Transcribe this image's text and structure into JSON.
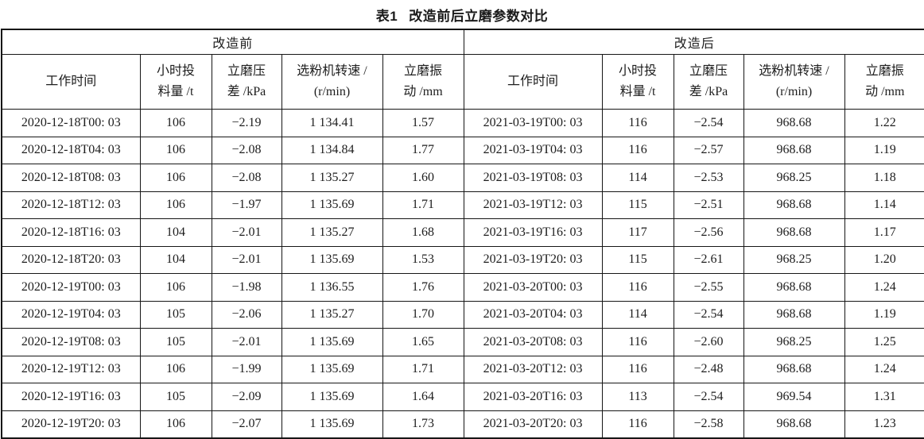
{
  "page": {
    "title_label": "表1",
    "title_text": "改造前后立磨参数对比"
  },
  "colors": {
    "background": "#ffffff",
    "border": "#161616",
    "text": "#1d1d1d"
  },
  "table": {
    "group_headers": [
      "改造前",
      "改造后"
    ],
    "column_headers": [
      {
        "lines": [
          "工作时间"
        ]
      },
      {
        "lines": [
          "小时投",
          "料量 /t"
        ]
      },
      {
        "lines": [
          "立磨压",
          "差 /kPa"
        ]
      },
      {
        "lines": [
          "选粉机转速 /",
          "(r/min)"
        ]
      },
      {
        "lines": [
          "立磨振",
          "动 /mm"
        ]
      }
    ],
    "before_rows": [
      [
        "2020-12-18T00: 03",
        "106",
        "−2.19",
        "1 134.41",
        "1.57"
      ],
      [
        "2020-12-18T04: 03",
        "106",
        "−2.08",
        "1 134.84",
        "1.77"
      ],
      [
        "2020-12-18T08: 03",
        "106",
        "−2.08",
        "1 135.27",
        "1.60"
      ],
      [
        "2020-12-18T12: 03",
        "106",
        "−1.97",
        "1 135.69",
        "1.71"
      ],
      [
        "2020-12-18T16: 03",
        "104",
        "−2.01",
        "1 135.27",
        "1.68"
      ],
      [
        "2020-12-18T20: 03",
        "104",
        "−2.01",
        "1 135.69",
        "1.53"
      ],
      [
        "2020-12-19T00: 03",
        "106",
        "−1.98",
        "1 136.55",
        "1.76"
      ],
      [
        "2020-12-19T04: 03",
        "105",
        "−2.06",
        "1 135.27",
        "1.70"
      ],
      [
        "2020-12-19T08: 03",
        "105",
        "−2.01",
        "1 135.69",
        "1.65"
      ],
      [
        "2020-12-19T12: 03",
        "106",
        "−1.99",
        "1 135.69",
        "1.71"
      ],
      [
        "2020-12-19T16: 03",
        "105",
        "−2.09",
        "1 135.69",
        "1.64"
      ],
      [
        "2020-12-19T20: 03",
        "106",
        "−2.07",
        "1 135.69",
        "1.73"
      ]
    ],
    "after_rows": [
      [
        "2021-03-19T00: 03",
        "116",
        "−2.54",
        "968.68",
        "1.22"
      ],
      [
        "2021-03-19T04: 03",
        "116",
        "−2.57",
        "968.68",
        "1.19"
      ],
      [
        "2021-03-19T08: 03",
        "114",
        "−2.53",
        "968.25",
        "1.18"
      ],
      [
        "2021-03-19T12: 03",
        "115",
        "−2.51",
        "968.68",
        "1.14"
      ],
      [
        "2021-03-19T16: 03",
        "117",
        "−2.56",
        "968.68",
        "1.17"
      ],
      [
        "2021-03-19T20: 03",
        "115",
        "−2.61",
        "968.25",
        "1.20"
      ],
      [
        "2021-03-20T00: 03",
        "116",
        "−2.55",
        "968.68",
        "1.24"
      ],
      [
        "2021-03-20T04: 03",
        "114",
        "−2.54",
        "968.68",
        "1.19"
      ],
      [
        "2021-03-20T08: 03",
        "116",
        "−2.60",
        "968.25",
        "1.25"
      ],
      [
        "2021-03-20T12: 03",
        "116",
        "−2.48",
        "968.68",
        "1.24"
      ],
      [
        "2021-03-20T16: 03",
        "113",
        "−2.54",
        "969.54",
        "1.31"
      ],
      [
        "2021-03-20T20: 03",
        "116",
        "−2.58",
        "968.68",
        "1.23"
      ]
    ]
  }
}
